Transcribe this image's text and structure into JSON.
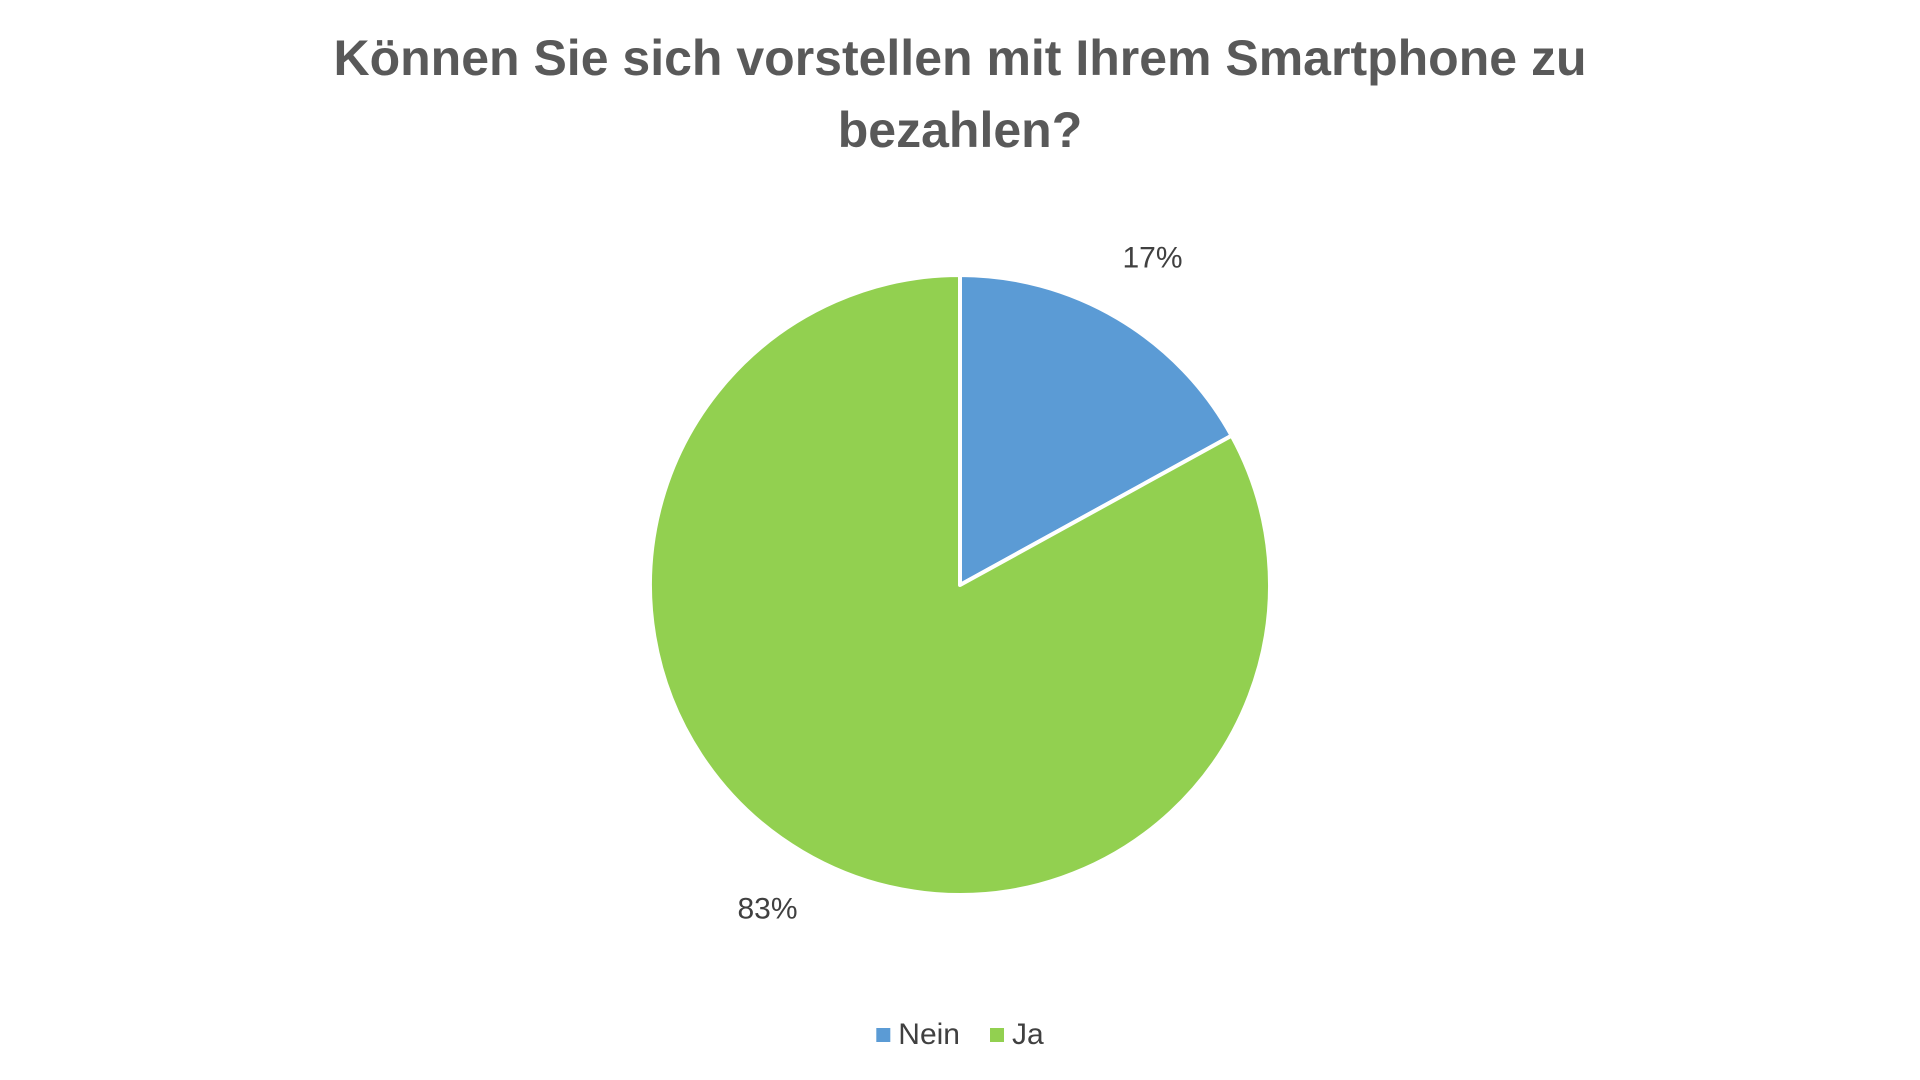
{
  "chart_data": {
    "type": "pie",
    "title": "Können Sie sich vorstellen mit Ihrem Smartphone zu bezahlen?",
    "categories": [
      "Nein",
      "Ja"
    ],
    "values": [
      17,
      83
    ],
    "value_labels": [
      "17%",
      "83%"
    ],
    "colors": [
      "#5b9bd5",
      "#92d050"
    ],
    "legend": "bottom"
  }
}
